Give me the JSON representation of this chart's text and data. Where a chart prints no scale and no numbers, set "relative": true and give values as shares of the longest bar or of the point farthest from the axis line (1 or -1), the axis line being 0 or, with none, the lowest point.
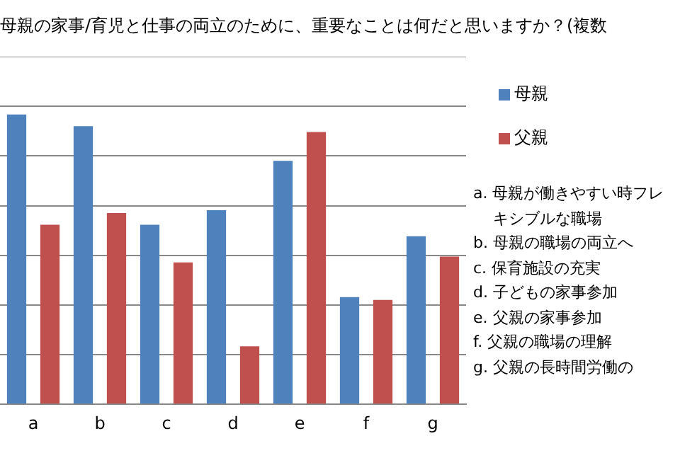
{
  "chart_data": {
    "type": "bar",
    "title": "母親の家事/育児と仕事の両立のために、重要なことは何だと思いますか？(複数",
    "categories": [
      "a",
      "b",
      "c",
      "d",
      "e",
      "f",
      "g"
    ],
    "relative": true,
    "grid": "y",
    "legend": "right",
    "series": [
      {
        "name": "母親",
        "color": "#4f81bd",
        "values": [
          1,
          0.96,
          0.62,
          0.67,
          0.84,
          0.37,
          0.58
        ]
      },
      {
        "name": "父親",
        "color": "#c0504d",
        "values": [
          0.62,
          0.66,
          0.49,
          0.2,
          0.94,
          0.36,
          0.51
        ]
      }
    ],
    "annotations": [
      "a. 母親が働きやすい時フレキシブルな職場",
      "b. 母親の職場の両立へ",
      "c. 保育施設の充実",
      "d. 子どもの家事参加",
      "e. 父親の家事参加",
      "f.  父親の職場の理解",
      "g. 父親の長時間労働の"
    ]
  }
}
